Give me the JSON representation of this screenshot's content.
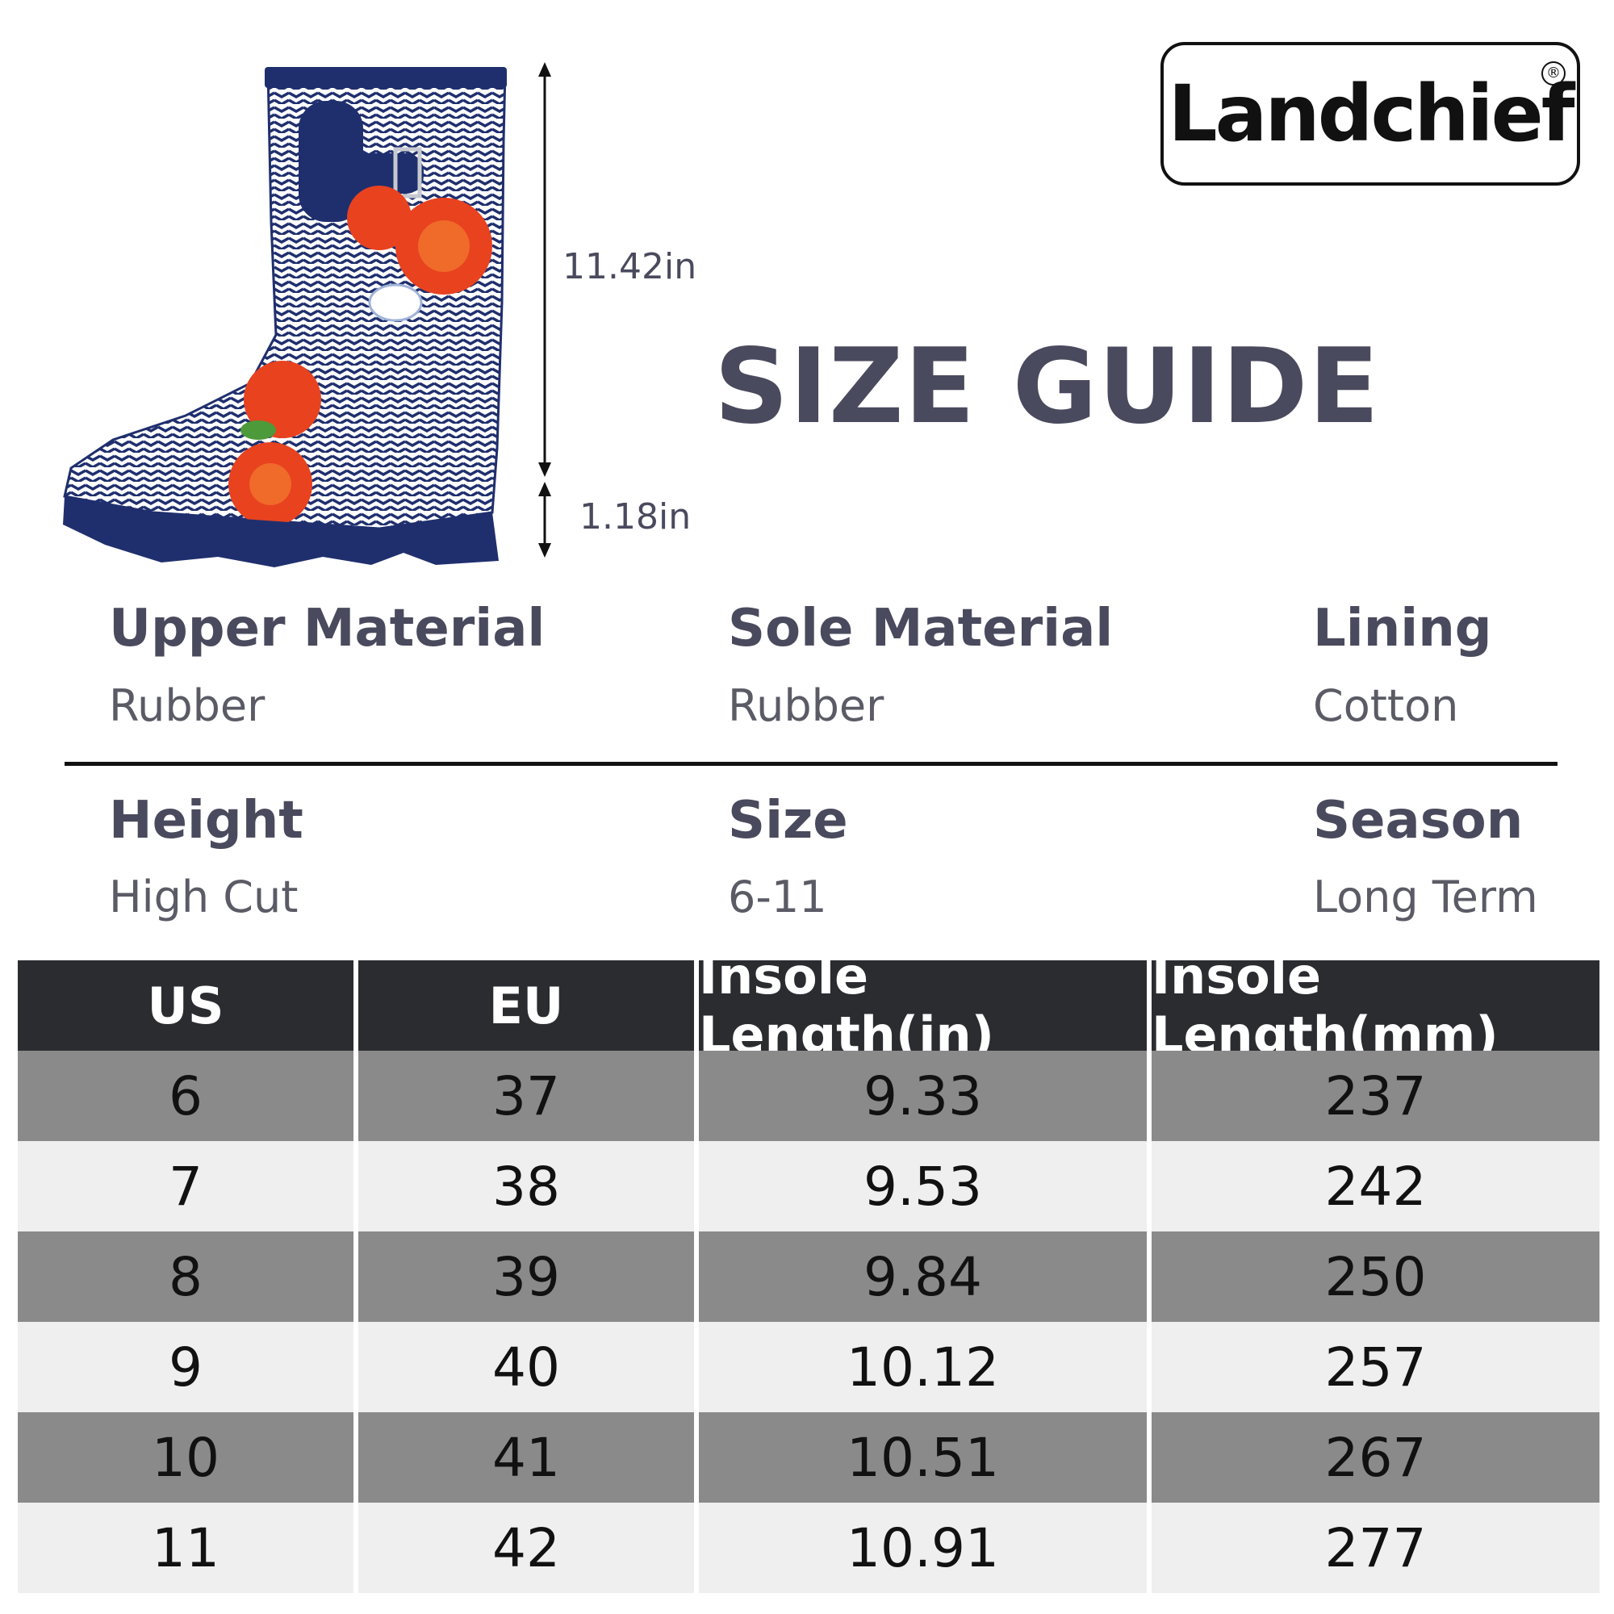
{
  "brand": {
    "name": "Landchief",
    "registered": "®"
  },
  "title": "SIZE GUIDE",
  "dimensions": {
    "shaft_height": "11.42in",
    "heel_height": "1.18in"
  },
  "attributes": [
    {
      "label": "Upper Material",
      "value": "Rubber"
    },
    {
      "label": "Sole Material",
      "value": "Rubber"
    },
    {
      "label": "Lining",
      "value": "Cotton"
    },
    {
      "label": "Height",
      "value": "High Cut"
    },
    {
      "label": "Size",
      "value": "6-11"
    },
    {
      "label": "Season",
      "value": "Long Term"
    }
  ],
  "size_table": {
    "headers": [
      "US",
      "EU",
      "Insole Length(in)",
      "Insole Length(mm)"
    ],
    "rows": [
      [
        "6",
        "37",
        "9.33",
        "237"
      ],
      [
        "7",
        "38",
        "9.53",
        "242"
      ],
      [
        "8",
        "39",
        "9.84",
        "250"
      ],
      [
        "9",
        "40",
        "10.12",
        "257"
      ],
      [
        "10",
        "41",
        "10.51",
        "267"
      ],
      [
        "11",
        "42",
        "10.91",
        "277"
      ]
    ]
  },
  "colors": {
    "boot_navy": "#1f2f6e",
    "rose": "#e8421f",
    "header_bg": "#2b2c30",
    "row_dark": "#8a8a8a",
    "row_light": "#efefef",
    "text": "#4a4a5e"
  }
}
